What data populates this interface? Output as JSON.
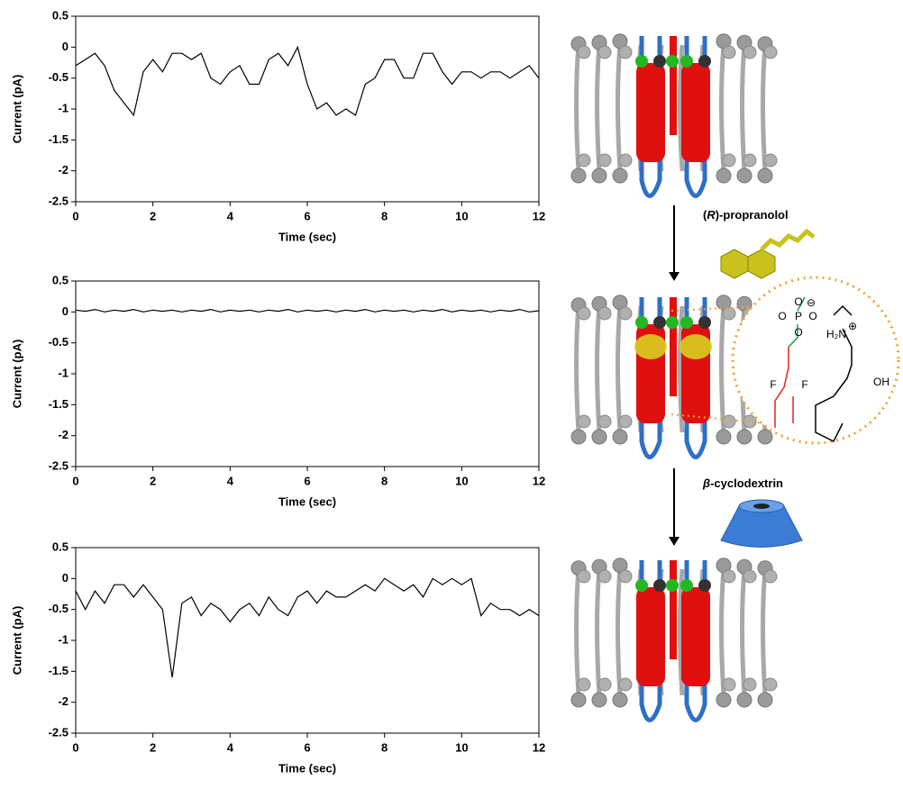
{
  "chart_data": [
    {
      "type": "line",
      "xlabel": "Time (sec)",
      "ylabel": "Current (pA)",
      "color": "#000000",
      "xlim": [
        0,
        12
      ],
      "ylim": [
        -2.5,
        0.5
      ],
      "xticks": [
        0,
        2,
        4,
        6,
        8,
        10,
        12
      ],
      "yticks": [
        0.5,
        0,
        -0.5,
        -1,
        -1.5,
        -2,
        -2.5
      ],
      "x": [
        0,
        0.25,
        0.5,
        0.75,
        1,
        1.25,
        1.5,
        1.75,
        2,
        2.25,
        2.5,
        2.75,
        3,
        3.25,
        3.5,
        3.75,
        4,
        4.25,
        4.5,
        4.75,
        5,
        5.25,
        5.5,
        5.75,
        6,
        6.25,
        6.5,
        6.75,
        7,
        7.25,
        7.5,
        7.75,
        8,
        8.25,
        8.5,
        8.75,
        9,
        9.25,
        9.5,
        9.75,
        10,
        10.25,
        10.5,
        10.75,
        11,
        11.25,
        11.5,
        11.75,
        12
      ],
      "values": [
        -0.3,
        -0.2,
        -0.1,
        -0.3,
        -0.7,
        -0.9,
        -1.1,
        -0.4,
        -0.2,
        -0.4,
        -0.1,
        -0.1,
        -0.2,
        -0.1,
        -0.5,
        -0.6,
        -0.4,
        -0.3,
        -0.6,
        -0.6,
        -0.2,
        -0.1,
        -0.3,
        0.0,
        -0.6,
        -1.0,
        -0.9,
        -1.1,
        -1.0,
        -1.1,
        -0.6,
        -0.5,
        -0.2,
        -0.2,
        -0.5,
        -0.5,
        -0.1,
        -0.1,
        -0.4,
        -0.6,
        -0.4,
        -0.4,
        -0.5,
        -0.4,
        -0.4,
        -0.5,
        -0.4,
        -0.3,
        -0.5
      ]
    },
    {
      "type": "line",
      "xlabel": "Time (sec)",
      "ylabel": "Current (pA)",
      "color": "#000000",
      "xlim": [
        0,
        12
      ],
      "ylim": [
        -2.5,
        0.5
      ],
      "xticks": [
        0,
        2,
        4,
        6,
        8,
        10,
        12
      ],
      "yticks": [
        0.5,
        0,
        -0.5,
        -1,
        -1.5,
        -2,
        -2.5
      ],
      "x": [
        0,
        0.25,
        0.5,
        0.75,
        1,
        1.25,
        1.5,
        1.75,
        2,
        2.25,
        2.5,
        2.75,
        3,
        3.25,
        3.5,
        3.75,
        4,
        4.25,
        4.5,
        4.75,
        5,
        5.25,
        5.5,
        5.75,
        6,
        6.25,
        6.5,
        6.75,
        7,
        7.25,
        7.5,
        7.75,
        8,
        8.25,
        8.5,
        8.75,
        9,
        9.25,
        9.5,
        9.75,
        10,
        10.25,
        10.5,
        10.75,
        11,
        11.25,
        11.5,
        11.75,
        12
      ],
      "values": [
        0.03,
        0.01,
        0.04,
        0.0,
        0.03,
        0.01,
        0.04,
        0.0,
        0.03,
        0.01,
        0.03,
        0.0,
        0.03,
        0.01,
        0.04,
        0.0,
        0.03,
        0.01,
        0.03,
        0.0,
        0.03,
        0.01,
        0.04,
        0.0,
        0.03,
        0.01,
        0.03,
        0.0,
        0.03,
        0.01,
        0.04,
        0.0,
        0.03,
        0.01,
        0.03,
        0.0,
        0.03,
        0.01,
        0.04,
        0.0,
        0.03,
        0.01,
        0.03,
        0.0,
        0.03,
        0.01,
        0.04,
        0.0,
        0.02
      ]
    },
    {
      "type": "line",
      "xlabel": "Time (sec)",
      "ylabel": "Current (pA)",
      "color": "#000000",
      "xlim": [
        0,
        12
      ],
      "ylim": [
        -2.5,
        0.5
      ],
      "xticks": [
        0,
        2,
        4,
        6,
        8,
        10,
        12
      ],
      "yticks": [
        0.5,
        0,
        -0.5,
        -1,
        -1.5,
        -2,
        -2.5
      ],
      "x": [
        0,
        0.25,
        0.5,
        0.75,
        1,
        1.25,
        1.5,
        1.75,
        2,
        2.25,
        2.5,
        2.75,
        3,
        3.25,
        3.5,
        3.75,
        4,
        4.25,
        4.5,
        4.75,
        5,
        5.25,
        5.5,
        5.75,
        6,
        6.25,
        6.5,
        6.75,
        7,
        7.25,
        7.5,
        7.75,
        8,
        8.25,
        8.5,
        8.75,
        9,
        9.25,
        9.5,
        9.75,
        10,
        10.25,
        10.5,
        10.75,
        11,
        11.25,
        11.5,
        11.75,
        12
      ],
      "values": [
        -0.2,
        -0.5,
        -0.2,
        -0.4,
        -0.1,
        -0.1,
        -0.3,
        -0.1,
        -0.3,
        -0.5,
        -1.6,
        -0.4,
        -0.3,
        -0.6,
        -0.4,
        -0.5,
        -0.7,
        -0.5,
        -0.4,
        -0.6,
        -0.3,
        -0.5,
        -0.6,
        -0.3,
        -0.2,
        -0.4,
        -0.2,
        -0.3,
        -0.3,
        -0.2,
        -0.1,
        -0.2,
        0.0,
        -0.1,
        -0.2,
        -0.1,
        -0.3,
        0.0,
        -0.1,
        0.0,
        -0.1,
        0.0,
        -0.6,
        -0.4,
        -0.5,
        -0.5,
        -0.6,
        -0.5,
        -0.6
      ]
    }
  ],
  "diagram": {
    "step1_label": [
      "(",
      "R",
      ")-propranolol"
    ],
    "step2_label": [
      "β",
      "-cyclodextrin"
    ],
    "atoms": [
      "O",
      "P",
      "O",
      "O",
      "O",
      "H₂N",
      "OH",
      "F",
      "F",
      "⊖",
      "⊕"
    ]
  }
}
